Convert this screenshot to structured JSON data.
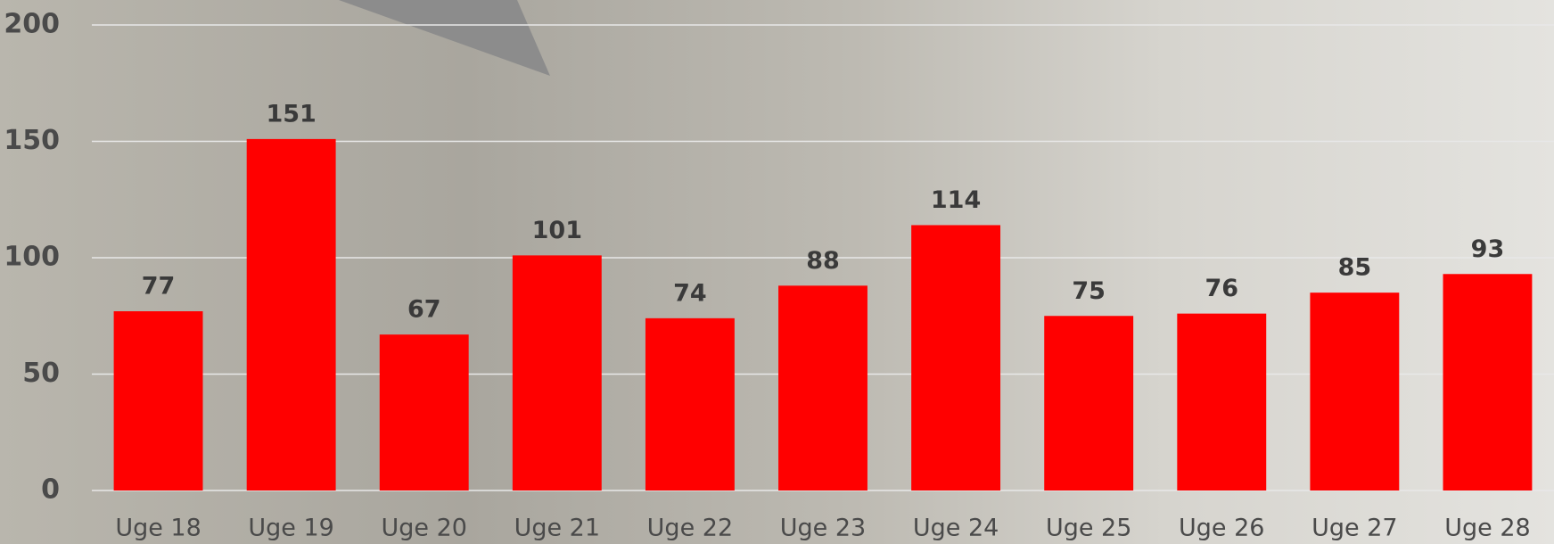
{
  "chart_data": {
    "type": "bar",
    "categories": [
      "Uge 18",
      "Uge 19",
      "Uge 20",
      "Uge 21",
      "Uge 22",
      "Uge 23",
      "Uge 24",
      "Uge 25",
      "Uge 26",
      "Uge 27",
      "Uge 28"
    ],
    "values": [
      77,
      151,
      67,
      101,
      74,
      88,
      114,
      75,
      76,
      85,
      93
    ],
    "color": "#ff0000",
    "ylim": [
      0,
      200
    ],
    "yticks": [
      0,
      50,
      100,
      150,
      200
    ],
    "grid": true
  }
}
